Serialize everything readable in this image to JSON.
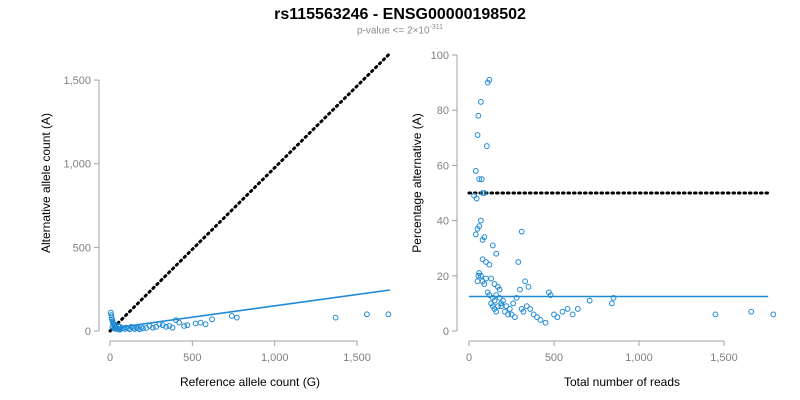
{
  "title": "rs115563246 - ENSG00000198502",
  "subtitle": {
    "prefix": "p-value <= 2",
    "times": "×",
    "base": "10",
    "exponent": "-311"
  },
  "colors": {
    "points": "#1f8ad6",
    "fit": "#1f8ad6",
    "reference": "#000000",
    "axis": "#a0a0a0",
    "tick_text": "#808080"
  },
  "chart_data": [
    {
      "type": "scatter",
      "xlabel": "Reference allele count (G)",
      "ylabel": "Alternative allele count (A)",
      "xlim": [
        0,
        1700
      ],
      "ylim": [
        0,
        1650
      ],
      "xticks": [
        0,
        500,
        1000,
        1500
      ],
      "xtick_labels": [
        "0",
        "500",
        "1,000",
        "1,500"
      ],
      "yticks": [
        0,
        500,
        1000,
        1500
      ],
      "ytick_labels": [
        "0",
        "500",
        "1,000",
        "1,500"
      ],
      "reference_line": {
        "style": "dotted",
        "from": [
          0,
          0
        ],
        "to": [
          1700,
          1660
        ]
      },
      "fit_line": {
        "style": "solid",
        "from": [
          0,
          15
        ],
        "to": [
          1700,
          245
        ]
      },
      "points": [
        [
          5,
          110
        ],
        [
          8,
          95
        ],
        [
          10,
          80
        ],
        [
          12,
          70
        ],
        [
          15,
          60
        ],
        [
          18,
          50
        ],
        [
          20,
          45
        ],
        [
          22,
          40
        ],
        [
          25,
          35
        ],
        [
          28,
          30
        ],
        [
          30,
          25
        ],
        [
          35,
          20
        ],
        [
          40,
          18
        ],
        [
          45,
          15
        ],
        [
          50,
          12
        ],
        [
          55,
          10
        ],
        [
          60,
          8
        ],
        [
          15,
          25
        ],
        [
          25,
          15
        ],
        [
          35,
          12
        ],
        [
          50,
          30
        ],
        [
          60,
          25
        ],
        [
          70,
          15
        ],
        [
          80,
          18
        ],
        [
          90,
          12
        ],
        [
          100,
          20
        ],
        [
          110,
          15
        ],
        [
          120,
          10
        ],
        [
          130,
          25
        ],
        [
          140,
          18
        ],
        [
          150,
          12
        ],
        [
          160,
          20
        ],
        [
          170,
          15
        ],
        [
          180,
          10
        ],
        [
          190,
          22
        ],
        [
          200,
          15
        ],
        [
          220,
          18
        ],
        [
          240,
          30
        ],
        [
          260,
          20
        ],
        [
          280,
          25
        ],
        [
          300,
          40
        ],
        [
          320,
          35
        ],
        [
          340,
          25
        ],
        [
          360,
          30
        ],
        [
          380,
          20
        ],
        [
          400,
          65
        ],
        [
          420,
          50
        ],
        [
          450,
          30
        ],
        [
          470,
          35
        ],
        [
          520,
          45
        ],
        [
          550,
          50
        ],
        [
          580,
          40
        ],
        [
          620,
          70
        ],
        [
          740,
          90
        ],
        [
          770,
          80
        ],
        [
          1370,
          80
        ],
        [
          1560,
          100
        ],
        [
          1690,
          100
        ]
      ]
    },
    {
      "type": "scatter",
      "xlabel": "Total number of reads",
      "ylabel": "Percentage alternative (A)",
      "xlim": [
        0,
        1800
      ],
      "ylim": [
        0,
        100
      ],
      "xticks": [
        0,
        500,
        1000,
        1500
      ],
      "xtick_labels": [
        "0",
        "500",
        "1,000",
        "1,500"
      ],
      "yticks": [
        0,
        20,
        40,
        60,
        80,
        100
      ],
      "ytick_labels": [
        "0",
        "20",
        "40",
        "60",
        "80",
        "100"
      ],
      "reference_line": {
        "style": "dotted",
        "y": 50,
        "x_range": [
          0,
          1760
        ]
      },
      "fit_line": {
        "style": "solid",
        "y": 12.5,
        "x_range": [
          0,
          1760
        ]
      },
      "points": [
        [
          110,
          90
        ],
        [
          120,
          91
        ],
        [
          70,
          83
        ],
        [
          55,
          78
        ],
        [
          50,
          71
        ],
        [
          105,
          67
        ],
        [
          40,
          58
        ],
        [
          60,
          55
        ],
        [
          75,
          55
        ],
        [
          80,
          50
        ],
        [
          90,
          50
        ],
        [
          30,
          49
        ],
        [
          45,
          48
        ],
        [
          70,
          40
        ],
        [
          60,
          38
        ],
        [
          50,
          37
        ],
        [
          40,
          35
        ],
        [
          80,
          33
        ],
        [
          90,
          34
        ],
        [
          140,
          31
        ],
        [
          160,
          28
        ],
        [
          80,
          26
        ],
        [
          100,
          25
        ],
        [
          120,
          24
        ],
        [
          60,
          21
        ],
        [
          70,
          20
        ],
        [
          55,
          20
        ],
        [
          50,
          18
        ],
        [
          80,
          18
        ],
        [
          90,
          17
        ],
        [
          100,
          19
        ],
        [
          130,
          19
        ],
        [
          150,
          17
        ],
        [
          170,
          16
        ],
        [
          180,
          15
        ],
        [
          110,
          14
        ],
        [
          120,
          13
        ],
        [
          140,
          12
        ],
        [
          160,
          13
        ],
        [
          180,
          12
        ],
        [
          190,
          10
        ],
        [
          200,
          11
        ],
        [
          220,
          9
        ],
        [
          240,
          8
        ],
        [
          260,
          10
        ],
        [
          280,
          12
        ],
        [
          300,
          15
        ],
        [
          310,
          8
        ],
        [
          320,
          7
        ],
        [
          340,
          9
        ],
        [
          360,
          8
        ],
        [
          380,
          6
        ],
        [
          400,
          5
        ],
        [
          420,
          4
        ],
        [
          450,
          3
        ],
        [
          470,
          14
        ],
        [
          480,
          13
        ],
        [
          500,
          6
        ],
        [
          520,
          5
        ],
        [
          550,
          7
        ],
        [
          580,
          8
        ],
        [
          610,
          6
        ],
        [
          640,
          8
        ],
        [
          710,
          11
        ],
        [
          840,
          10
        ],
        [
          850,
          12
        ],
        [
          130,
          10
        ],
        [
          140,
          9
        ],
        [
          150,
          11
        ],
        [
          150,
          8
        ],
        [
          160,
          7
        ],
        [
          170,
          9
        ],
        [
          190,
          9
        ],
        [
          210,
          7
        ],
        [
          230,
          6
        ],
        [
          250,
          6
        ],
        [
          270,
          5
        ],
        [
          290,
          25
        ],
        [
          310,
          36
        ],
        [
          330,
          18
        ],
        [
          350,
          16
        ],
        [
          1450,
          6
        ],
        [
          1660,
          7
        ],
        [
          1790,
          6
        ]
      ]
    }
  ]
}
